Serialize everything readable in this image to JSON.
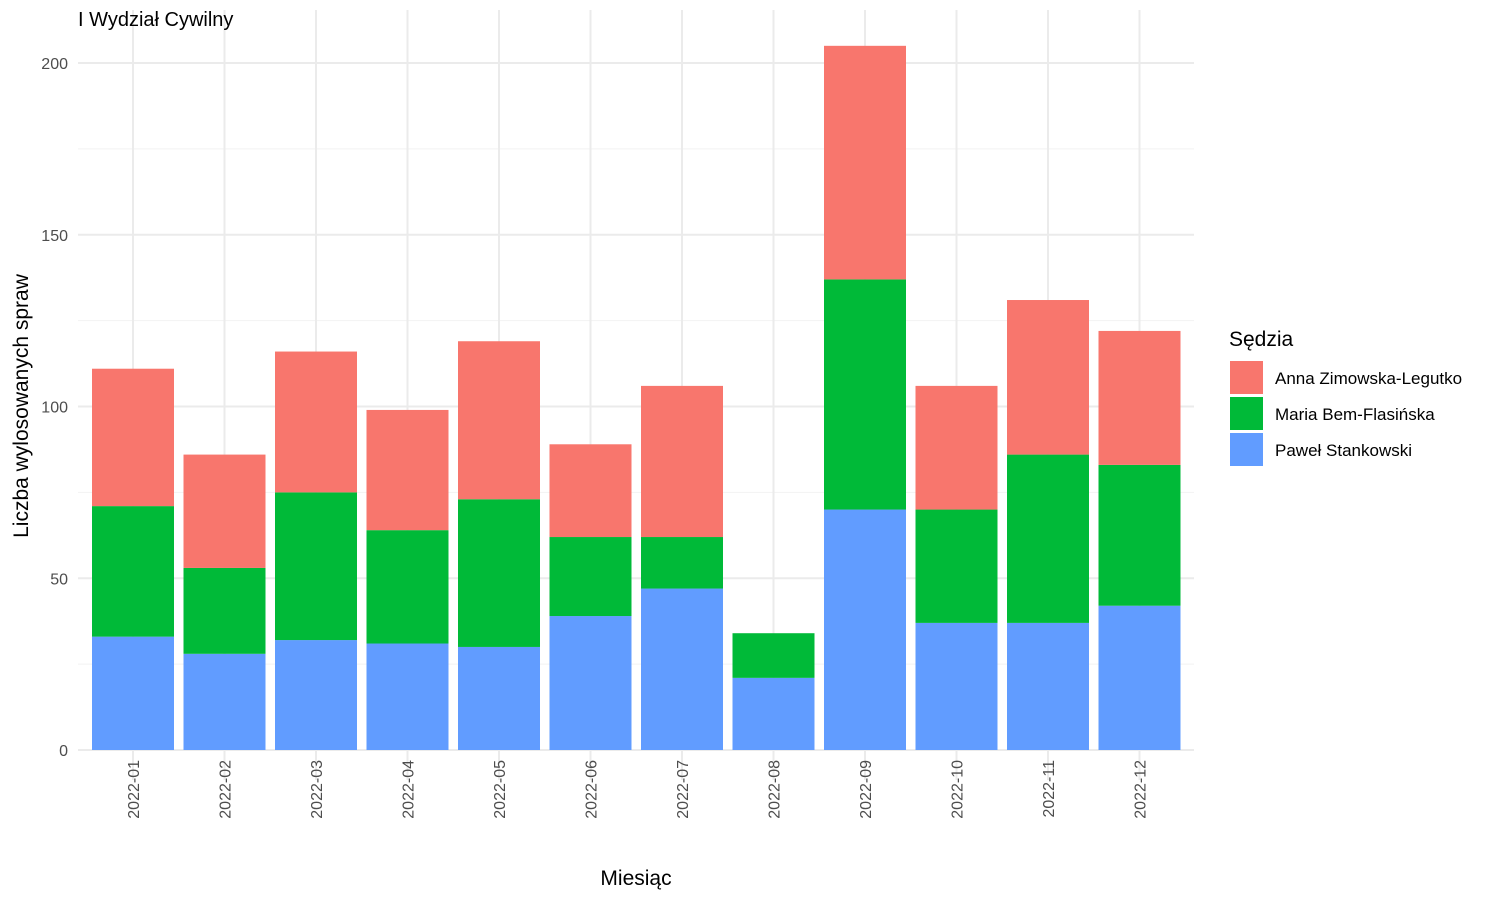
{
  "chart_data": {
    "type": "bar",
    "stacked": true,
    "title": "I Wydział Cywilny",
    "xlabel": "Miesiąc",
    "ylabel": "Liczba wylosowanych spraw",
    "ylim": [
      0,
      210
    ],
    "yticks": [
      0,
      50,
      100,
      150,
      200
    ],
    "grid": true,
    "legend": {
      "title": "Sędzia",
      "position": "right"
    },
    "categories": [
      "2022-01",
      "2022-02",
      "2022-03",
      "2022-04",
      "2022-05",
      "2022-06",
      "2022-07",
      "2022-08",
      "2022-09",
      "2022-10",
      "2022-11",
      "2022-12"
    ],
    "series": [
      {
        "name": "Anna Zimowska-Legutko",
        "color": "#F8766D",
        "values": [
          40,
          33,
          41,
          35,
          46,
          27,
          44,
          0,
          68,
          36,
          45,
          39
        ]
      },
      {
        "name": "Maria Bem-Flasińska",
        "color": "#00BA38",
        "values": [
          38,
          25,
          43,
          33,
          43,
          23,
          15,
          13,
          67,
          33,
          49,
          41
        ]
      },
      {
        "name": "Paweł Stankowski",
        "color": "#619CFF",
        "values": [
          33,
          28,
          32,
          31,
          30,
          39,
          47,
          21,
          70,
          37,
          37,
          42
        ]
      }
    ],
    "stack_order_bottom_to_top": [
      "Paweł Stankowski",
      "Maria Bem-Flasińska",
      "Anna Zimowska-Legutko"
    ]
  }
}
